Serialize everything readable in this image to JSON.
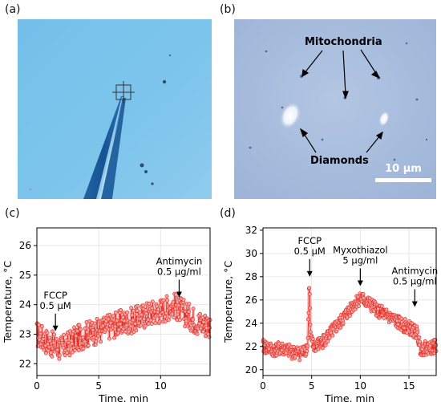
{
  "panels": {
    "a": {
      "letter": "(a)"
    },
    "b": {
      "letter": "(b)",
      "label_mito": "Mitochondria",
      "label_diamonds": "Diamonds",
      "scale_bar": "10 μm"
    },
    "c": {
      "letter": "(c)"
    },
    "d": {
      "letter": "(d)"
    }
  },
  "colors": {
    "series": "#e8312a",
    "glow": "#f7b9bd",
    "photo_a": "#7cc3ea",
    "photo_b": "#a9bfdd",
    "axis": "#000000",
    "grid": "#e2e2e2"
  },
  "chart_data": [
    {
      "id": "c",
      "type": "line",
      "xlabel": "Time, min",
      "ylabel": "Temperature, °C",
      "xlim": [
        0,
        14
      ],
      "ylim": [
        21.6,
        26.6
      ],
      "xticks": [
        0,
        5,
        10
      ],
      "yticks": [
        22,
        23,
        24,
        25,
        26
      ],
      "grid": true,
      "annotations": [
        {
          "lines": [
            "FCCP",
            "0.5 μM"
          ],
          "x": 1.5,
          "arrow_tip_y": 23.1
        },
        {
          "lines": [
            "Antimycin",
            "0.5 μg/ml"
          ],
          "x": 11.5,
          "arrow_tip_y": 24.25
        }
      ],
      "series": [
        {
          "markers": true,
          "x": [
            0,
            1,
            2,
            3,
            4,
            5,
            6,
            7,
            8,
            9,
            10,
            11,
            12,
            13,
            14
          ],
          "y": [
            23.0,
            22.7,
            22.5,
            22.8,
            23.0,
            23.1,
            23.3,
            23.4,
            23.5,
            23.7,
            23.8,
            24.0,
            23.7,
            23.4,
            23.3
          ],
          "noise": 0.45
        }
      ]
    },
    {
      "id": "d",
      "type": "line",
      "xlabel": "Time, min",
      "ylabel": "Temperature, °C",
      "xlim": [
        0,
        17.8
      ],
      "ylim": [
        19.5,
        32.2
      ],
      "xticks": [
        0,
        5,
        10,
        15
      ],
      "yticks": [
        20,
        22,
        24,
        26,
        28,
        30,
        32
      ],
      "grid": true,
      "annotations": [
        {
          "lines": [
            "FCCP",
            "0.5 μM"
          ],
          "x": 4.8,
          "arrow_tip_y": 28.0
        },
        {
          "lines": [
            "Myxothiazol",
            "5 μg/ml"
          ],
          "x": 10.0,
          "arrow_tip_y": 27.2
        },
        {
          "lines": [
            "Antimycin",
            "0.5 μg/ml"
          ],
          "x": 15.6,
          "arrow_tip_y": 25.4
        }
      ],
      "series": [
        {
          "markers": true,
          "x": [
            0,
            1,
            2,
            3,
            4,
            4.6,
            4.75,
            4.9,
            5.2,
            6,
            7,
            8,
            9,
            10,
            11,
            12,
            13,
            14,
            15,
            15.8,
            16.2,
            17,
            17.8
          ],
          "y": [
            22.0,
            21.7,
            21.8,
            21.5,
            21.4,
            22.0,
            27.6,
            22.6,
            22.0,
            22.3,
            23.2,
            24.1,
            25.3,
            26.2,
            25.6,
            25.0,
            24.5,
            24.0,
            23.6,
            23.2,
            21.8,
            21.9,
            22.0
          ],
          "noise": 0.6
        }
      ]
    }
  ]
}
